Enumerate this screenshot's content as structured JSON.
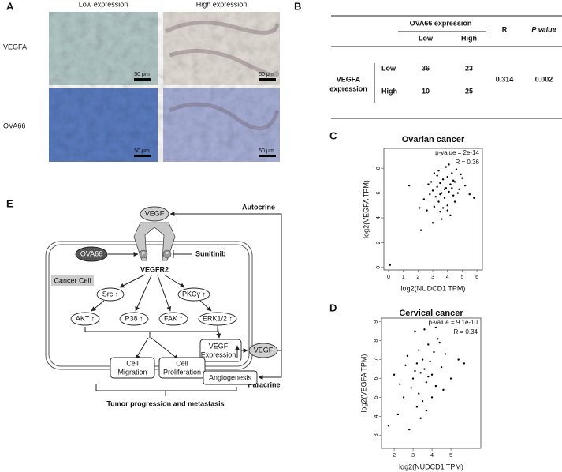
{
  "panel_letters": [
    "A",
    "B",
    "C",
    "D",
    "E"
  ],
  "panel_a": {
    "columns": [
      "Low expression",
      "High expression"
    ],
    "rows": [
      "VEGFA",
      "OVA66"
    ],
    "scale_bar": "50 μm"
  },
  "panel_b": {
    "group_header": "OVA66 expression",
    "col_headers": [
      "Low",
      "High"
    ],
    "r_header": "R",
    "p_header": "P value",
    "row_group": [
      "VEGFA",
      "expression"
    ],
    "rows": [
      [
        "Low",
        36,
        23
      ],
      [
        "High",
        10,
        25
      ]
    ],
    "r": 0.314,
    "p": 0.002
  },
  "chart_data": [
    {
      "type": "scatter",
      "title": "Ovarian cancer",
      "annotations": [
        "p-value = 2e-14",
        "R = 0.36"
      ],
      "x_label": "log2(NUDCD1 TPM)",
      "y_label": "log2(VEGFA TPM)",
      "color": "#000000",
      "x": [
        2.1,
        2.4,
        2.6,
        2.8,
        3.0,
        3.1,
        3.2,
        3.3,
        3.4,
        3.5,
        3.5,
        3.6,
        3.7,
        3.8,
        3.9,
        4.0,
        4.0,
        4.1,
        4.2,
        4.3,
        4.4,
        4.5,
        4.6,
        4.8,
        5.0,
        5.2,
        5.5,
        5.8,
        3.0,
        3.3,
        3.6,
        3.9,
        4.2,
        4.5,
        2.9,
        3.4,
        3.8,
        4.1,
        4.4,
        4.7,
        1.4,
        2.2,
        3.1,
        3.7,
        4.3,
        4.9,
        0.1,
        3.5,
        2.7,
        4.0
      ],
      "y": [
        4.8,
        5.5,
        4.6,
        5.9,
        6.2,
        4.9,
        5.7,
        6.5,
        5.3,
        6.8,
        4.5,
        6.0,
        7.1,
        5.6,
        6.4,
        7.3,
        5.0,
        6.1,
        6.7,
        7.6,
        5.8,
        6.9,
        7.9,
        6.3,
        7.2,
        6.6,
        5.9,
        5.6,
        3.6,
        7.4,
        3.9,
        8.1,
        4.2,
        5.3,
        6.9,
        7.8,
        6.3,
        8.3,
        7.0,
        6.0,
        6.6,
        3.0,
        7.6,
        4.8,
        6.4,
        7.5,
        0.2,
        5.9,
        6.7,
        4.6
      ],
      "xlim": [
        -0.32,
        6.37
      ],
      "ylim": [
        -0.2,
        9.6
      ],
      "xticks": [
        0,
        1,
        2,
        3,
        4,
        5,
        6
      ],
      "yticks": [
        0,
        2,
        4,
        6,
        8
      ]
    },
    {
      "type": "scatter",
      "title": "Cervical cancer",
      "annotations": [
        "p-value = 9.1e-10",
        "R = 0.34"
      ],
      "x_label": "log2(NUDCD1 TPM)",
      "y_label": "log2(VEGFA TPM)",
      "color": "#000000",
      "x": [
        1.7,
        2.0,
        2.2,
        2.5,
        2.7,
        2.9,
        3.0,
        3.1,
        3.2,
        3.3,
        3.3,
        3.4,
        3.5,
        3.5,
        3.6,
        3.7,
        3.8,
        3.9,
        4.0,
        4.1,
        4.2,
        4.3,
        4.5,
        4.7,
        5.0,
        5.4,
        2.3,
        2.8,
        3.2,
        3.6,
        4.0,
        4.4,
        3.4,
        3.8,
        4.2,
        3.1,
        3.7,
        2.6,
        4.6,
        5.7
      ],
      "y": [
        3.5,
        6.2,
        4.1,
        5.0,
        7.2,
        5.5,
        6.0,
        8.5,
        6.8,
        5.2,
        7.5,
        6.3,
        4.8,
        7.0,
        6.5,
        5.8,
        7.8,
        6.9,
        6.2,
        7.4,
        5.6,
        8.1,
        6.6,
        7.3,
        6.0,
        7.0,
        5.7,
        3.3,
        4.5,
        8.6,
        5.0,
        7.9,
        3.9,
        6.1,
        8.7,
        6.4,
        4.3,
        6.7,
        5.4,
        6.8
      ],
      "xlim": [
        1.33,
        6.58
      ],
      "ylim": [
        2.3,
        9.2
      ],
      "xticks": [
        2,
        3,
        4,
        5
      ],
      "yticks": [
        3,
        4,
        5,
        6,
        7,
        8,
        9
      ]
    }
  ],
  "diagram": {
    "ligand_top": "VEGF",
    "receptor": "VEGFR2",
    "ova66": "OVA66",
    "phospho": "P",
    "inhibitor": "Sunitinib",
    "cell": "Cancer Cell",
    "autocrine": "Autocrine",
    "paracrine": "Paracrine",
    "src": "Src ↑",
    "pkc": "PKCγ ↑",
    "akt": "AKT ↑",
    "p38": "P38 ↑",
    "fak": "FAK ↑",
    "erk": "ERK1/2 ↑",
    "vegf_expression": [
      "VEGF",
      "Expression"
    ],
    "ligand_right": "VEGF",
    "migration": [
      "Cell",
      "Migration"
    ],
    "proliferation": [
      "Cell",
      "Proliferation"
    ],
    "angiogenesis": "Angiogenesis",
    "outcome": "Tumor progression and metastasis"
  }
}
